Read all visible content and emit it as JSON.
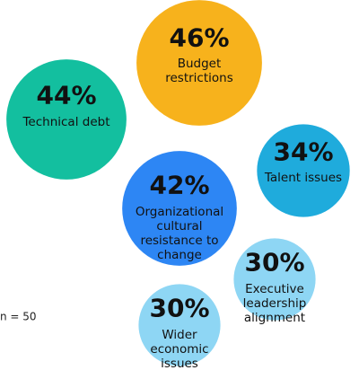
{
  "chart_data": {
    "type": "bubble",
    "categories": [
      "Budget restrictions",
      "Technical debt",
      "Organizational cultural resistance to change",
      "Talent issues",
      "Executive leadership alignment",
      "Wider economic issues"
    ],
    "values": [
      46,
      44,
      42,
      34,
      30,
      30
    ],
    "value_labels": [
      "46%",
      "44%",
      "42%",
      "34%",
      "30%",
      "30%"
    ],
    "colors": [
      "#f7b21c",
      "#13bf9f",
      "#2d86f4",
      "#1fabdc",
      "#8ed6f4",
      "#8ed6f4"
    ],
    "note": "n = 50"
  }
}
